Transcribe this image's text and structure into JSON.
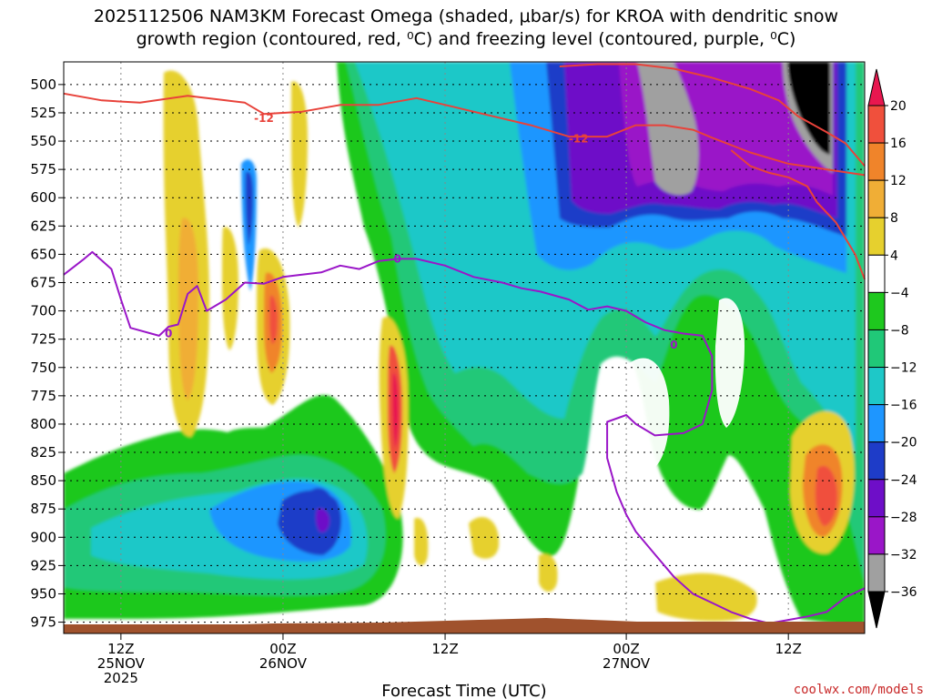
{
  "title_line1": "2025112506 NAM3KM Forecast Omega (shaded, μbar/s) for KROA with dendritic snow",
  "title_line2": "growth region (contoured, red, ⁰C) and freezing level (contoured, purple, ⁰C)",
  "credit": "coolwx.com/models",
  "colors": {
    "dendritic_contour": "#e8423a",
    "freezing_contour": "#9a16c8",
    "ground": "#a0522d"
  },
  "chart_data": {
    "type": "heatmap",
    "xlabel": "Forecast Time (UTC)",
    "x_range_hours": [
      0,
      84
    ],
    "y_range_mb": [
      480,
      985
    ],
    "yaxis_inverted": true,
    "grid": true,
    "y_ticks": [
      "500",
      "525",
      "550",
      "575",
      "600",
      "625",
      "650",
      "675",
      "700",
      "725",
      "750",
      "775",
      "800",
      "825",
      "850",
      "875",
      "900",
      "925",
      "950",
      "975"
    ],
    "x_ticks": [
      {
        "hour": 6,
        "l1": "12Z",
        "l2": "25NOV",
        "l3": "2025"
      },
      {
        "hour": 23,
        "l1": "00Z",
        "l2": "26NOV",
        "l3": ""
      },
      {
        "hour": 40,
        "l1": "12Z",
        "l2": "",
        "l3": ""
      },
      {
        "hour": 59,
        "l1": "00Z",
        "l2": "27NOV",
        "l3": ""
      },
      {
        "hour": 76,
        "l1": "12Z",
        "l2": "",
        "l3": ""
      }
    ],
    "colorbar": {
      "labels": [
        "20",
        "16",
        "12",
        "8",
        "4",
        "−4",
        "−8",
        "−12",
        "−16",
        "−20",
        "−24",
        "−28",
        "−32",
        "−36"
      ],
      "colors": [
        "#e8174f",
        "#f0503c",
        "#f0842a",
        "#f0ae36",
        "#e6d02e",
        "#ffffff",
        "#1ec81e",
        "#20c878",
        "#1ec8c8",
        "#1e96ff",
        "#1e3cc8",
        "#6e0ec8",
        "#9a16c8",
        "#a0a0a0",
        "#000000"
      ]
    },
    "contour_labels": [
      {
        "text": "-12",
        "hour": 21,
        "mb": 530,
        "series": "dendritic"
      },
      {
        "text": "-12",
        "hour": 54,
        "mb": 548,
        "series": "dendritic"
      },
      {
        "text": "0",
        "hour": 11,
        "mb": 720,
        "series": "freezing"
      },
      {
        "text": "0",
        "hour": 35,
        "mb": 654,
        "series": "freezing"
      },
      {
        "text": "0",
        "hour": 64,
        "mb": 730,
        "series": "freezing"
      }
    ],
    "series": [
      {
        "kind": "dendritic",
        "points": [
          [
            0,
            508
          ],
          [
            4,
            514
          ],
          [
            8,
            516
          ],
          [
            13,
            510
          ],
          [
            17,
            514
          ],
          [
            19,
            516
          ],
          [
            21,
            526
          ],
          [
            25,
            524
          ],
          [
            29,
            518
          ],
          [
            33,
            518
          ],
          [
            37,
            512
          ],
          [
            41,
            520
          ],
          [
            45,
            528
          ],
          [
            49,
            536
          ],
          [
            53,
            546
          ],
          [
            57,
            546
          ],
          [
            60,
            536
          ],
          [
            63,
            536
          ],
          [
            66,
            540
          ],
          [
            68,
            547
          ],
          [
            72,
            560
          ],
          [
            76,
            570
          ],
          [
            80,
            575
          ],
          [
            84,
            580
          ]
        ]
      },
      {
        "kind": "dendritic",
        "points": [
          [
            52,
            484
          ],
          [
            56,
            482
          ],
          [
            60,
            482
          ],
          [
            64,
            486
          ],
          [
            68,
            494
          ],
          [
            72,
            504
          ],
          [
            75,
            514
          ],
          [
            77,
            528
          ],
          [
            80,
            542
          ],
          [
            82,
            552
          ],
          [
            84,
            572
          ]
        ]
      },
      {
        "kind": "dendritic",
        "points": [
          [
            70,
            558
          ],
          [
            72,
            572
          ],
          [
            74,
            578
          ],
          [
            76,
            582
          ],
          [
            78,
            590
          ],
          [
            79,
            604
          ],
          [
            81,
            622
          ],
          [
            83,
            650
          ],
          [
            84,
            672
          ]
        ]
      },
      {
        "kind": "freezing",
        "points": [
          [
            0,
            668
          ],
          [
            2,
            655
          ],
          [
            3,
            648
          ],
          [
            5,
            663
          ],
          [
            6,
            690
          ],
          [
            7,
            715
          ],
          [
            10,
            722
          ],
          [
            11,
            714
          ],
          [
            12,
            712
          ],
          [
            13,
            685
          ],
          [
            14,
            678
          ],
          [
            15,
            700
          ],
          [
            17,
            690
          ],
          [
            19,
            675
          ],
          [
            21,
            676
          ],
          [
            23,
            670
          ],
          [
            25,
            668
          ],
          [
            27,
            666
          ],
          [
            29,
            660
          ],
          [
            31,
            663
          ],
          [
            33,
            656
          ],
          [
            35,
            654
          ],
          [
            37,
            654
          ],
          [
            40,
            660
          ],
          [
            43,
            670
          ],
          [
            46,
            675
          ],
          [
            48,
            680
          ],
          [
            50,
            683
          ],
          [
            53,
            690
          ],
          [
            55,
            699
          ],
          [
            57,
            696
          ],
          [
            59,
            700
          ],
          [
            61,
            710
          ],
          [
            63,
            717
          ],
          [
            65,
            720
          ],
          [
            67,
            722
          ],
          [
            68,
            740
          ],
          [
            68,
            770
          ],
          [
            67,
            800
          ],
          [
            65,
            808
          ],
          [
            62,
            810
          ],
          [
            60,
            800
          ],
          [
            59,
            792
          ],
          [
            57,
            798
          ],
          [
            57,
            830
          ],
          [
            58,
            860
          ],
          [
            59,
            880
          ],
          [
            60,
            895
          ],
          [
            62,
            915
          ],
          [
            64,
            935
          ],
          [
            66,
            950
          ],
          [
            68,
            958
          ],
          [
            70,
            966
          ],
          [
            72,
            972
          ],
          [
            74,
            976
          ],
          [
            76,
            973
          ],
          [
            78,
            970
          ],
          [
            80,
            966
          ],
          [
            82,
            953
          ],
          [
            84,
            945
          ]
        ]
      }
    ]
  }
}
